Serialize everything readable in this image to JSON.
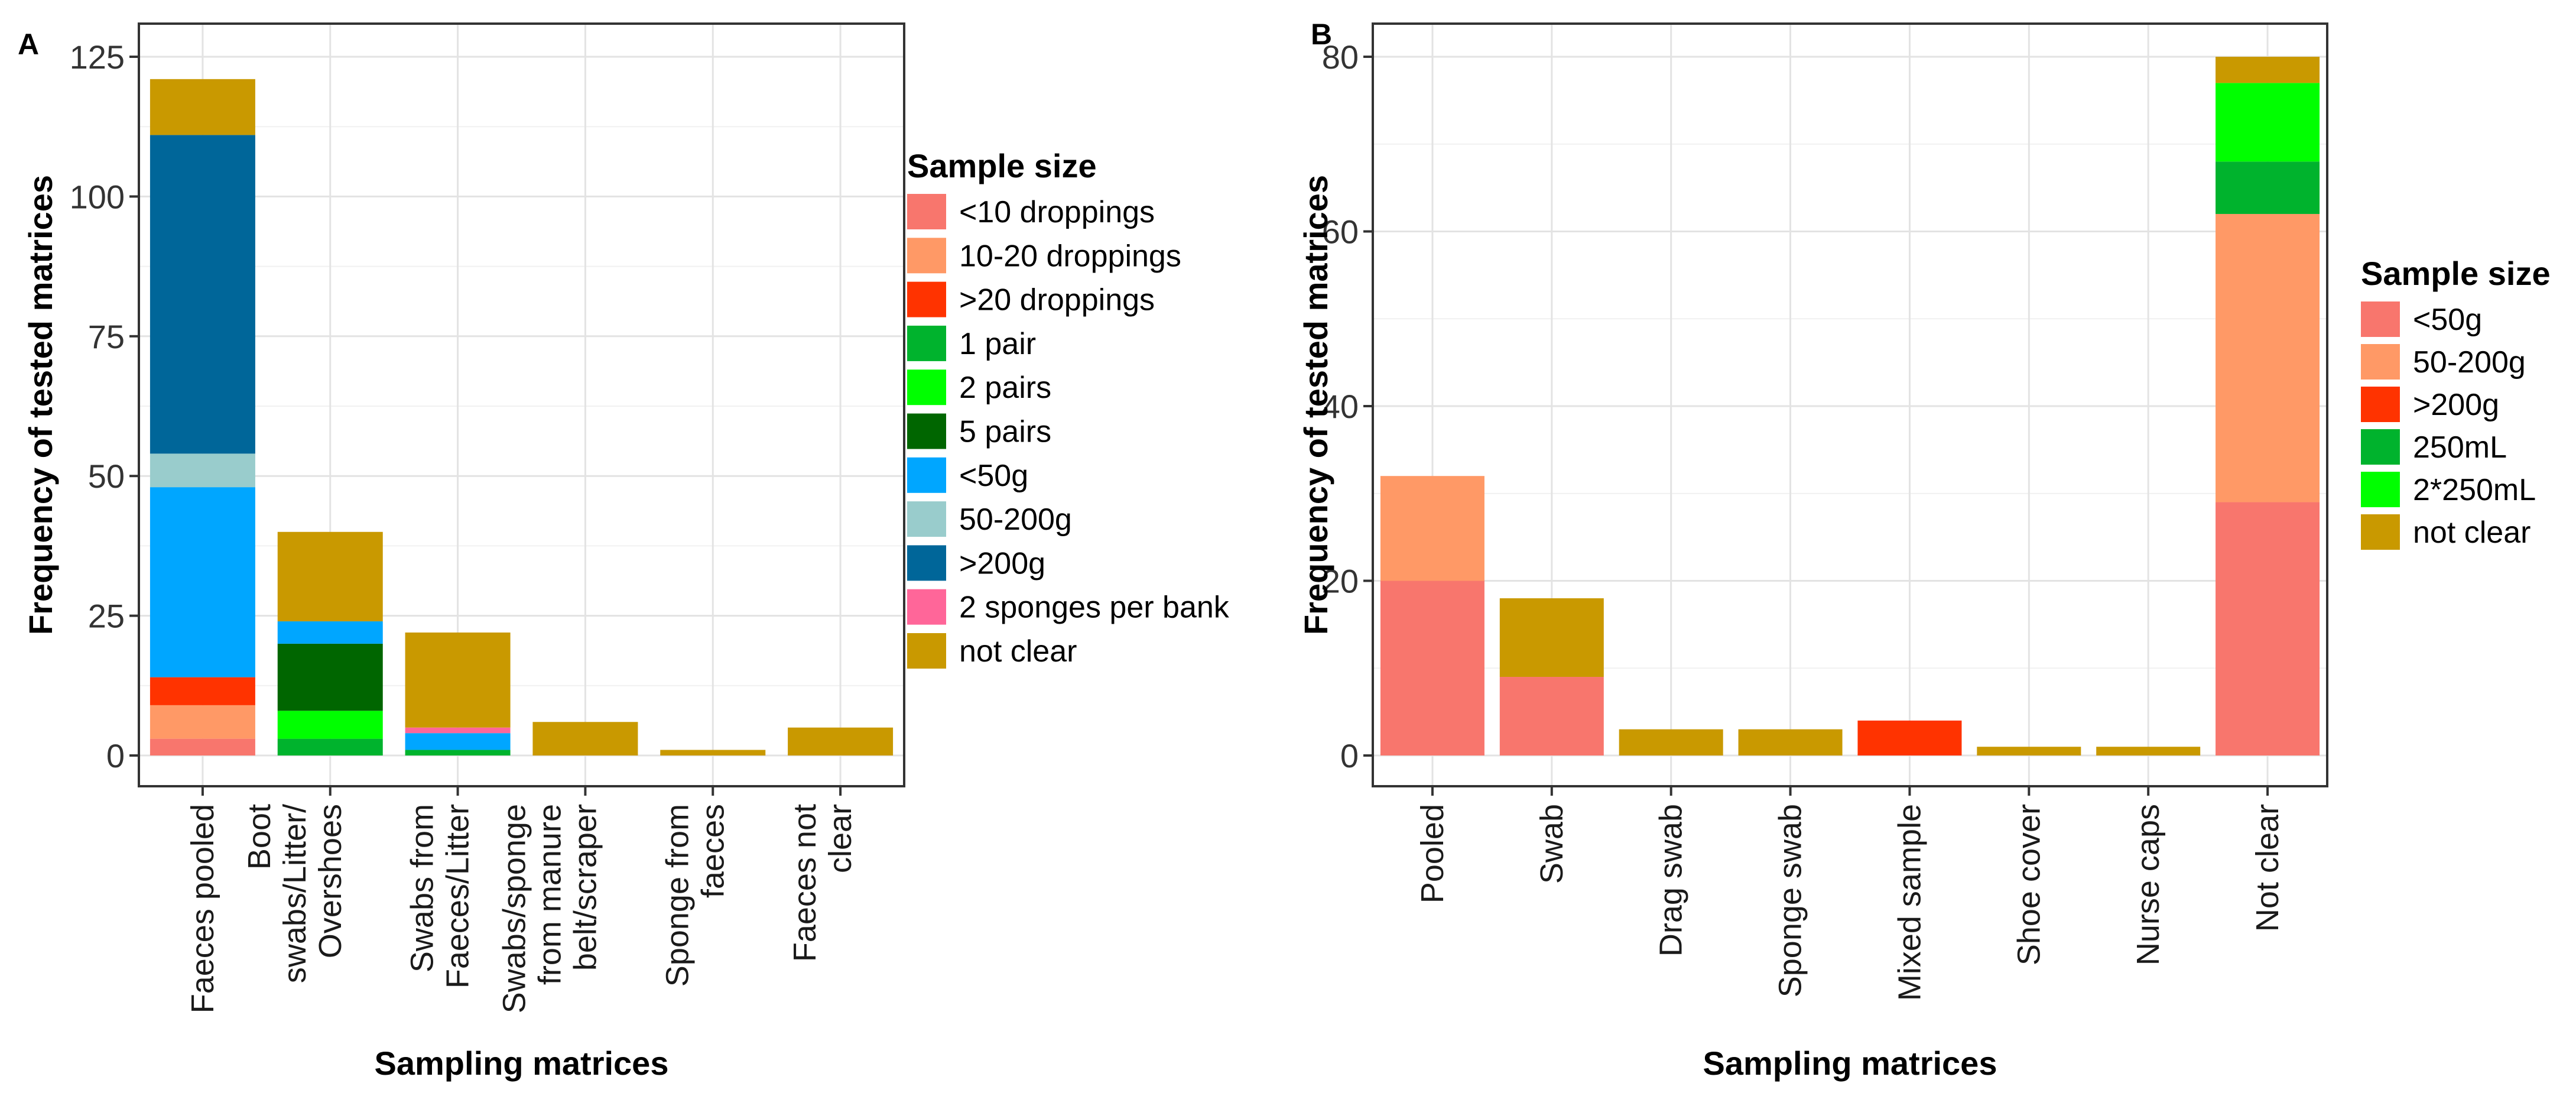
{
  "chart_data": [
    {
      "type": "bar",
      "stacked": true,
      "panel_label": "A",
      "xlabel": "Sampling matrices",
      "ylabel": "Frequency of tested matrices",
      "ylim": [
        0,
        125
      ],
      "y_ticks": [
        "0",
        "25",
        "50",
        "75",
        "100",
        "125"
      ],
      "grid": true,
      "legend_title": "Sample size",
      "legend_position": "right",
      "categories": [
        [
          "Faeces pooled"
        ],
        [
          "Boot",
          "swabs/Litter/",
          "Overshoes"
        ],
        [
          "Swabs from",
          "Faeces/Litter"
        ],
        [
          "Swabs/sponge",
          "from manure",
          "belt/scraper"
        ],
        [
          "Sponge from",
          "faeces"
        ],
        [
          "Faeces not",
          "clear"
        ]
      ],
      "series": [
        {
          "name": "<10 droppings",
          "color": "#F8766D",
          "values": [
            3,
            0,
            0,
            0,
            0,
            0
          ]
        },
        {
          "name": "10-20 droppings",
          "color": "#FF9966",
          "values": [
            6,
            0,
            0,
            0,
            0,
            0
          ]
        },
        {
          "name": ">20 droppings",
          "color": "#FF3300",
          "values": [
            5,
            0,
            0,
            0,
            0,
            0
          ]
        },
        {
          "name": "1 pair",
          "color": "#00B32D",
          "values": [
            0,
            3,
            1,
            0,
            0,
            0
          ]
        },
        {
          "name": "2 pairs",
          "color": "#00FF00",
          "values": [
            0,
            5,
            0,
            0,
            0,
            0
          ]
        },
        {
          "name": "5 pairs",
          "color": "#006600",
          "values": [
            0,
            12,
            0,
            0,
            0,
            0
          ]
        },
        {
          "name": "<50g",
          "color": "#00A6FF",
          "values": [
            34,
            4,
            3,
            0,
            0,
            0
          ]
        },
        {
          "name": "50-200g",
          "color": "#99CCCC",
          "values": [
            6,
            0,
            0,
            0,
            0,
            0
          ]
        },
        {
          "name": ">200g",
          "color": "#006699",
          "values": [
            57,
            0,
            0,
            0,
            0,
            0
          ]
        },
        {
          "name": "2 sponges per bank",
          "color": "#FF6699",
          "values": [
            0,
            0,
            1,
            0,
            0,
            0
          ]
        },
        {
          "name": "not clear",
          "color": "#C99900",
          "values": [
            10,
            16,
            17,
            6,
            1,
            5
          ]
        }
      ]
    },
    {
      "type": "bar",
      "stacked": true,
      "panel_label": "B",
      "xlabel": "Sampling matrices",
      "ylabel": "Frequency of tested matrices",
      "ylim": [
        0,
        80
      ],
      "y_ticks": [
        "0",
        "20",
        "40",
        "60",
        "80"
      ],
      "grid": true,
      "legend_title": "Sample size",
      "legend_position": "right",
      "categories": [
        [
          "Pooled"
        ],
        [
          "Swab"
        ],
        [
          "Drag swab"
        ],
        [
          "Sponge swab"
        ],
        [
          "Mixed sample"
        ],
        [
          "Shoe cover"
        ],
        [
          "Nurse caps"
        ],
        [
          "Not clear"
        ]
      ],
      "series": [
        {
          "name": "<50g",
          "color": "#F8766D",
          "values": [
            20,
            9,
            0,
            0,
            0,
            0,
            0,
            29
          ]
        },
        {
          "name": "50-200g",
          "color": "#FF9966",
          "values": [
            12,
            0,
            0,
            0,
            0,
            0,
            0,
            33
          ]
        },
        {
          "name": ">200g",
          "color": "#FF3300",
          "values": [
            0,
            0,
            0,
            0,
            4,
            0,
            0,
            0
          ]
        },
        {
          "name": "250mL",
          "color": "#00B32D",
          "values": [
            0,
            0,
            0,
            0,
            0,
            0,
            0,
            6
          ]
        },
        {
          "name": "2*250mL",
          "color": "#00FF00",
          "values": [
            0,
            0,
            0,
            0,
            0,
            0,
            0,
            9
          ]
        },
        {
          "name": "not clear",
          "color": "#C99900",
          "values": [
            0,
            9,
            3,
            3,
            0,
            1,
            1,
            3
          ]
        }
      ]
    }
  ]
}
